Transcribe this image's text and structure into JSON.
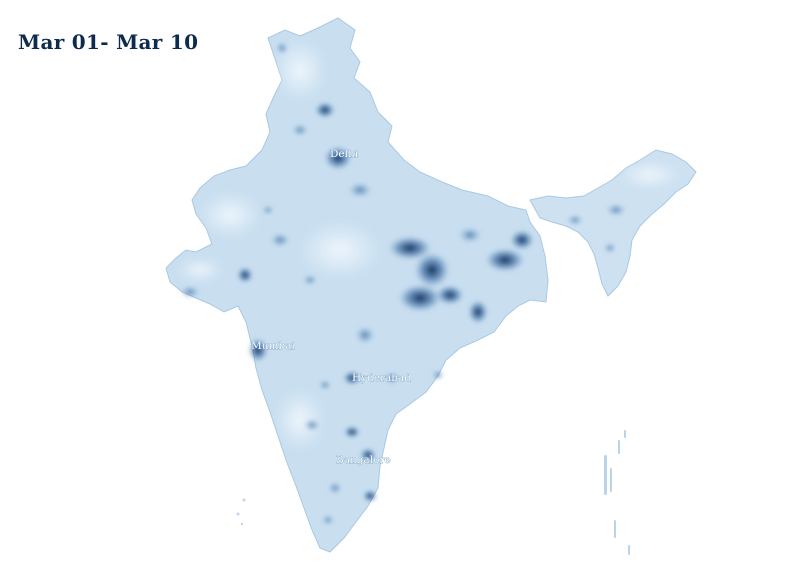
{
  "title": "Mar 01- Mar 10",
  "colors": {
    "land_base": "#c9dff0",
    "land_light": "#e2eef8",
    "hotspot_dark": "#0d2b5e",
    "hotspot_mid": "#2d5f9a",
    "title": "#0d2b4e",
    "label": "#ffffff"
  },
  "cities": [
    {
      "name": "Delhi"
    },
    {
      "name": "Mumbai"
    },
    {
      "name": "Hyderabad"
    },
    {
      "name": "Bangalore"
    }
  ]
}
